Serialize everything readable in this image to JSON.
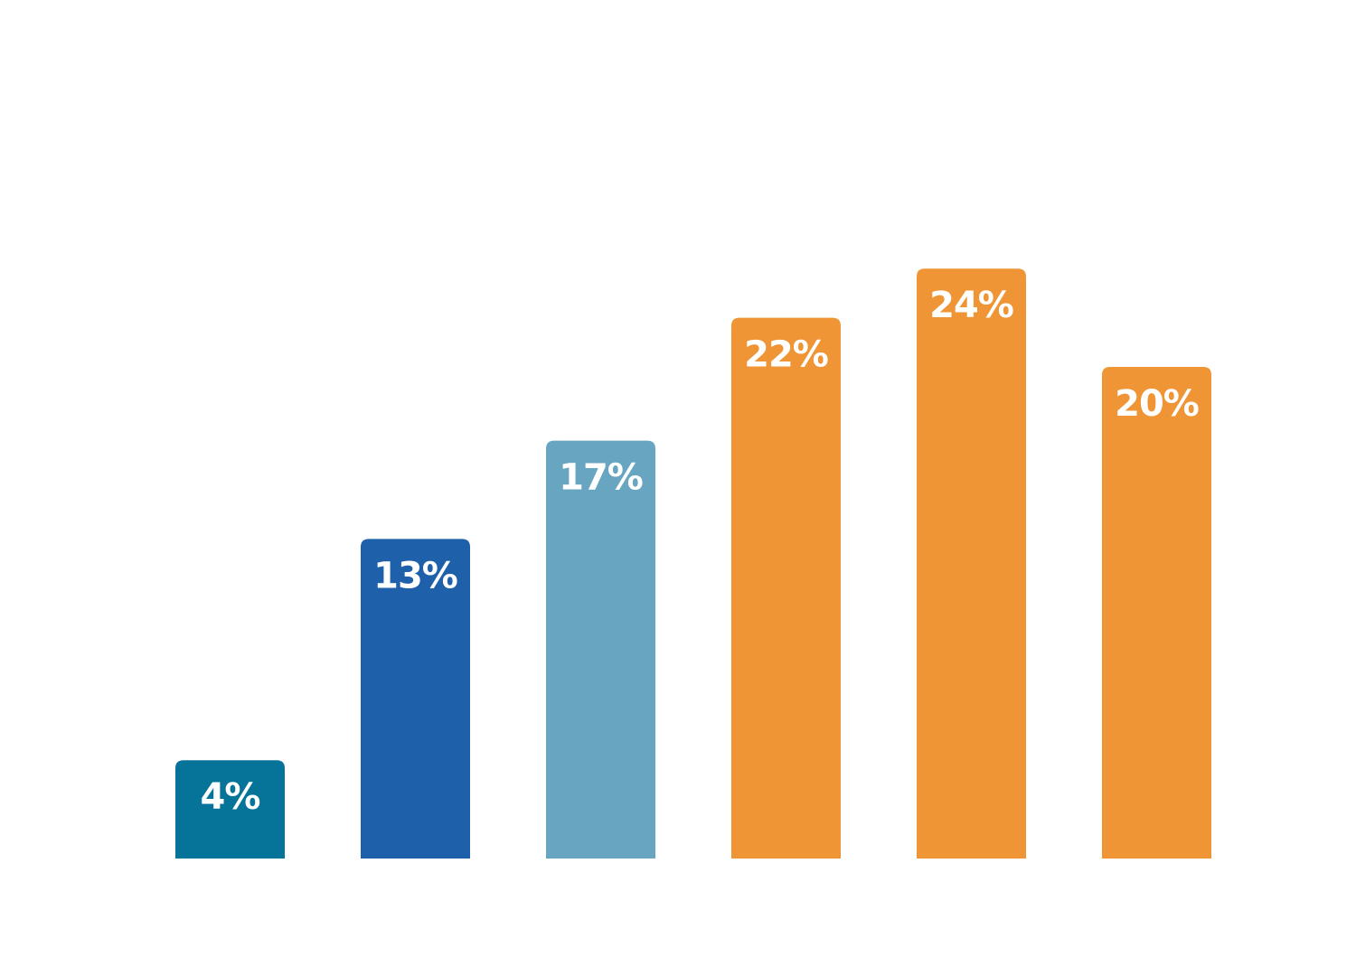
{
  "chart_data": {
    "type": "bar",
    "title": "",
    "xlabel": "",
    "ylabel": "",
    "categories": [
      "",
      "",
      "",
      "",
      "",
      ""
    ],
    "values": [
      4,
      13,
      17,
      22,
      24,
      20
    ],
    "data_labels": [
      "4%",
      "13%",
      "17%",
      "22%",
      "24%",
      "20%"
    ],
    "colors": [
      "#067398",
      "#1e60aa",
      "#68a5c0",
      "#f09535",
      "#f09535",
      "#f09535"
    ],
    "unit": "%",
    "ylim": [
      0,
      35
    ],
    "grid": false,
    "legend": "none"
  }
}
